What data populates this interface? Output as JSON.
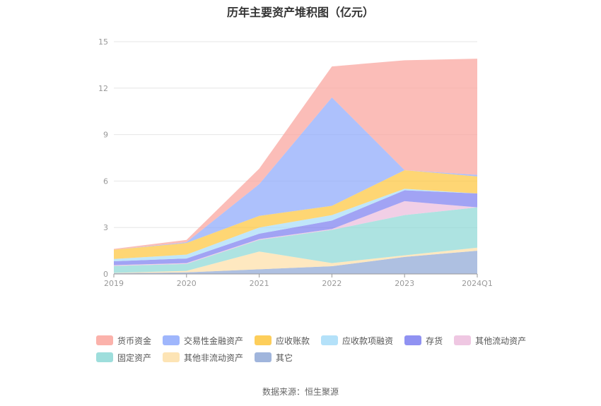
{
  "chart_data": {
    "type": "area",
    "stacked": true,
    "title": "历年主要资产堆积图（亿元）",
    "categories": [
      "2019",
      "2020",
      "2021",
      "2022",
      "2023",
      "2024Q1"
    ],
    "ylim": [
      0,
      15
    ],
    "yticks": [
      "0",
      "3",
      "6",
      "9",
      "12",
      "15"
    ],
    "grid": true,
    "legend_position": "bottom",
    "series": [
      {
        "name": "其它",
        "color": "#8fa8d6",
        "values": [
          0.05,
          0.1,
          0.3,
          0.5,
          1.1,
          1.5
        ]
      },
      {
        "name": "其他非流动资产",
        "color": "#fddfa8",
        "values": [
          0.02,
          0.1,
          1.15,
          0.2,
          0.1,
          0.2
        ]
      },
      {
        "name": "固定资产",
        "color": "#8dd8d6",
        "values": [
          0.45,
          0.45,
          0.75,
          2.15,
          2.6,
          2.6
        ]
      },
      {
        "name": "其他流动资产",
        "color": "#ecbddd",
        "values": [
          0.05,
          0.05,
          0.05,
          0.05,
          0.9,
          0.0
        ]
      },
      {
        "name": "存货",
        "color": "#7d7ff0",
        "values": [
          0.25,
          0.3,
          0.35,
          0.55,
          0.7,
          0.9
        ]
      },
      {
        "name": "应收款项融资",
        "color": "#a7dcf8",
        "values": [
          0.15,
          0.25,
          0.4,
          0.35,
          0.1,
          0.0
        ]
      },
      {
        "name": "应收账款",
        "color": "#fdc63e",
        "values": [
          0.6,
          0.75,
          0.75,
          0.6,
          1.2,
          1.1
        ]
      },
      {
        "name": "交易性金融资产",
        "color": "#8ea9fb",
        "values": [
          0.0,
          0.05,
          2.05,
          7.0,
          0.0,
          0.1
        ]
      },
      {
        "name": "货币资金",
        "color": "#faa49c",
        "values": [
          0.05,
          0.15,
          1.0,
          2.0,
          7.1,
          7.5
        ]
      }
    ]
  },
  "legend": {
    "row1": [
      "货币资金",
      "交易性金融资产",
      "应收账款",
      "应收款项融资",
      "存货",
      "其他流动资产"
    ],
    "row2": [
      "固定资产",
      "其他非流动资产",
      "其它"
    ]
  },
  "source": "数据来源：恒生聚源"
}
